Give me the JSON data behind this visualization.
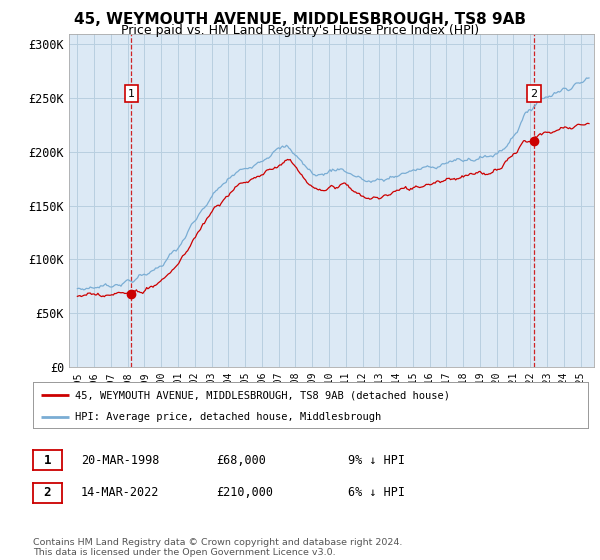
{
  "title": "45, WEYMOUTH AVENUE, MIDDLESBROUGH, TS8 9AB",
  "subtitle": "Price paid vs. HM Land Registry's House Price Index (HPI)",
  "title_fontsize": 11,
  "subtitle_fontsize": 9,
  "ylabel_ticks": [
    "£0",
    "£50K",
    "£100K",
    "£150K",
    "£200K",
    "£250K",
    "£300K"
  ],
  "ytick_vals": [
    0,
    50000,
    100000,
    150000,
    200000,
    250000,
    300000
  ],
  "ylim": [
    0,
    310000
  ],
  "xlim_start": 1994.5,
  "xlim_end": 2025.8,
  "background_color": "#ffffff",
  "plot_bg_color": "#dce9f5",
  "grid_color": "#b8cfe0",
  "sale1_year": 1998.22,
  "sale1_price": 68000,
  "sale2_year": 2022.21,
  "sale2_price": 210000,
  "red_color": "#cc0000",
  "blue_color": "#7aadd4",
  "legend_label_red": "45, WEYMOUTH AVENUE, MIDDLESBROUGH, TS8 9AB (detached house)",
  "legend_label_blue": "HPI: Average price, detached house, Middlesbrough",
  "table_row1": [
    "1",
    "20-MAR-1998",
    "£68,000",
    "9% ↓ HPI"
  ],
  "table_row2": [
    "2",
    "14-MAR-2022",
    "£210,000",
    "6% ↓ HPI"
  ],
  "footnote": "Contains HM Land Registry data © Crown copyright and database right 2024.\nThis data is licensed under the Open Government Licence v3.0."
}
